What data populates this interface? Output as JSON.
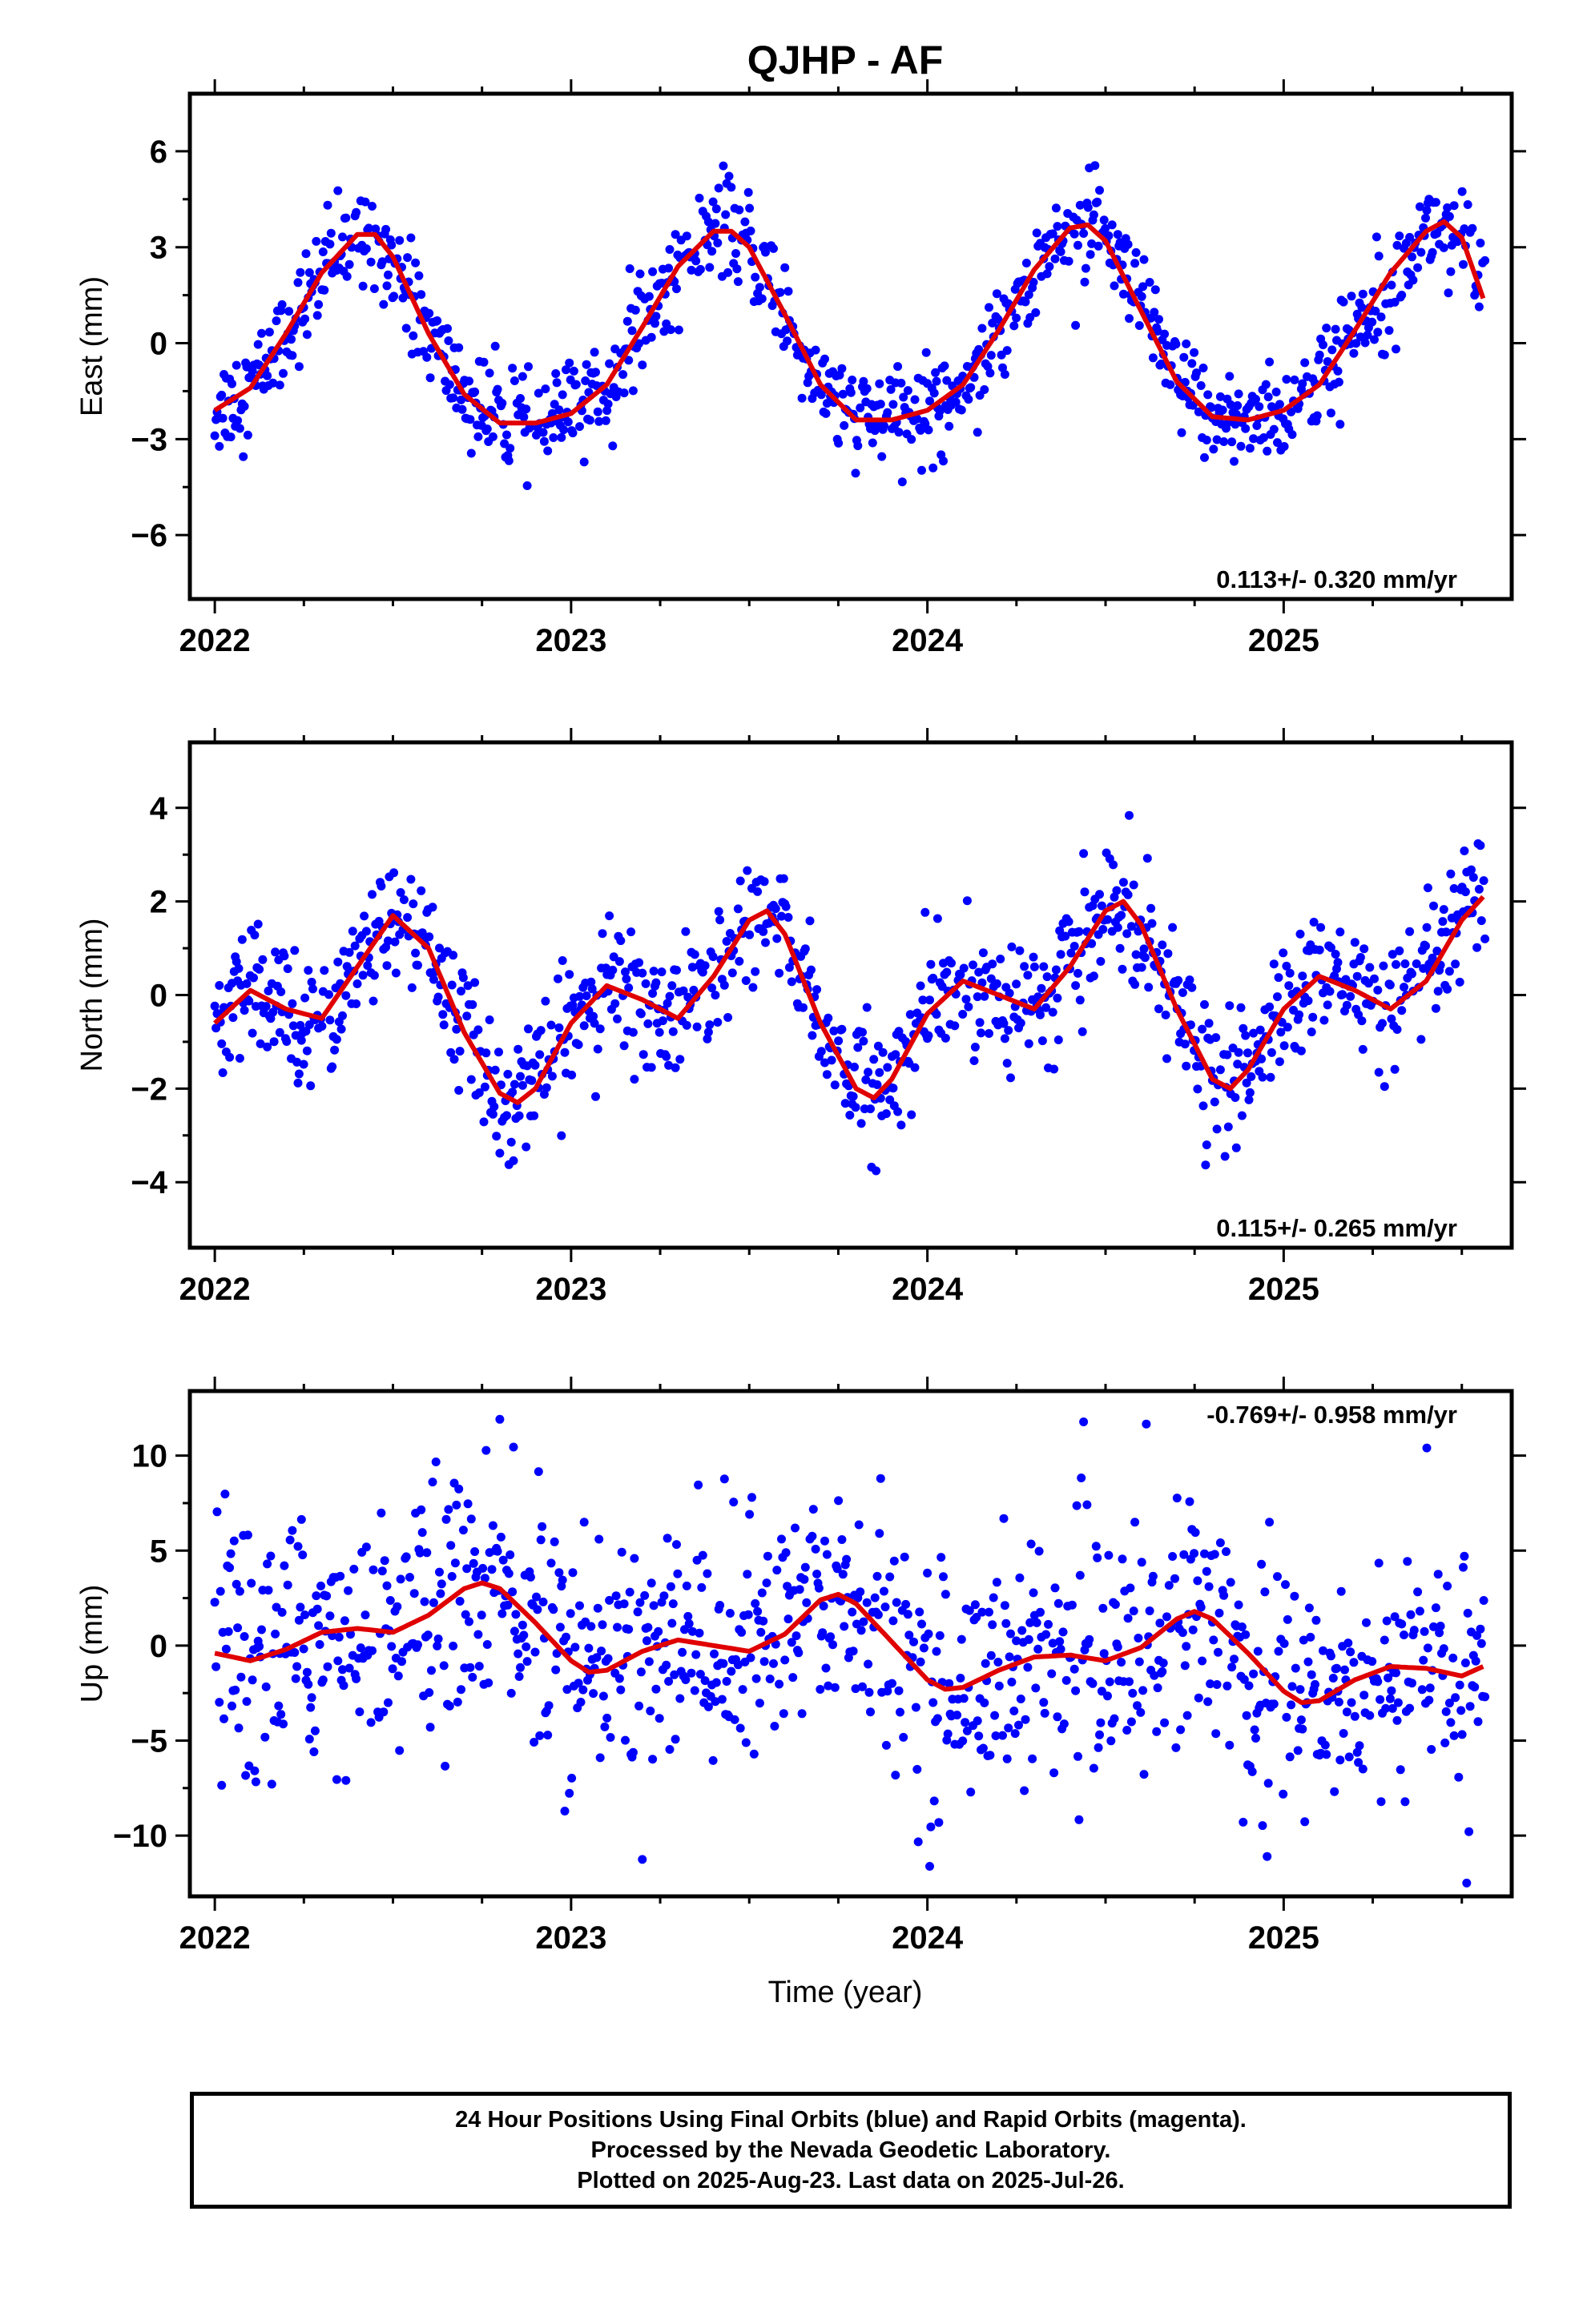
{
  "title": "QJHP - AF",
  "xlabel": "Time (year)",
  "colors": {
    "final_orbits": "#0000ff",
    "model": "#e00000",
    "rapid_orbits": "#ff00ff"
  },
  "caption": [
    "24 Hour Positions Using Final Orbits (blue) and Rapid Orbits (magenta).",
    "Processed by the Nevada Geodetic Laboratory.",
    "Plotted on 2025-Aug-23. Last data on 2025-Jul-26."
  ],
  "chart_data": [
    {
      "type": "scatter",
      "component": "east",
      "ylabel": "East (mm)",
      "xlim": [
        2021.93,
        2025.64
      ],
      "ylim": [
        -8.0,
        7.8
      ],
      "xticks": [
        2022,
        2023,
        2024,
        2025
      ],
      "xtick_labels": [
        "2022",
        "2023",
        "2024",
        "2025"
      ],
      "yticks": [
        -6,
        -3,
        0,
        3,
        6
      ],
      "ytick_labels": [
        "−6",
        "−3",
        "0",
        "3",
        "6"
      ],
      "rate_label": "0.113+/- 0.320 mm/yr",
      "rate_position": "bottom-right",
      "model": {
        "x": [
          2022.0,
          2022.1,
          2022.2,
          2022.3,
          2022.4,
          2022.45,
          2022.5,
          2022.6,
          2022.7,
          2022.8,
          2022.9,
          2023.0,
          2023.1,
          2023.2,
          2023.3,
          2023.4,
          2023.45,
          2023.5,
          2023.6,
          2023.7,
          2023.8,
          2023.9,
          2024.0,
          2024.1,
          2024.2,
          2024.3,
          2024.4,
          2024.45,
          2024.5,
          2024.6,
          2024.7,
          2024.8,
          2024.9,
          2025.0,
          2025.1,
          2025.2,
          2025.3,
          2025.4,
          2025.45,
          2025.5,
          2025.56
        ],
        "y": [
          -2.1,
          -1.4,
          0.3,
          2.2,
          3.4,
          3.4,
          2.7,
          0.3,
          -1.6,
          -2.5,
          -2.5,
          -2.2,
          -1.3,
          0.5,
          2.4,
          3.5,
          3.5,
          3.0,
          0.9,
          -1.3,
          -2.4,
          -2.4,
          -2.1,
          -1.3,
          0.4,
          2.3,
          3.6,
          3.7,
          3.2,
          1.0,
          -1.2,
          -2.3,
          -2.4,
          -2.1,
          -1.3,
          0.4,
          2.2,
          3.5,
          3.8,
          3.3,
          1.4
        ]
      },
      "seasonal": {
        "amplitude": 3.0,
        "phase_year": 2022.43,
        "scatter": 0.85,
        "rate": 0.113,
        "offset": 0.45
      }
    },
    {
      "type": "scatter",
      "component": "north",
      "ylabel": "North (mm)",
      "xlim": [
        2021.93,
        2025.64
      ],
      "ylim": [
        -5.4,
        5.4
      ],
      "xticks": [
        2022,
        2023,
        2024,
        2025
      ],
      "xtick_labels": [
        "2022",
        "2023",
        "2024",
        "2025"
      ],
      "yticks": [
        -4,
        -2,
        0,
        2,
        4
      ],
      "ytick_labels": [
        "−4",
        "−2",
        "0",
        "2",
        "4"
      ],
      "rate_label": "0.115+/- 0.265 mm/yr",
      "rate_position": "bottom-right",
      "model": {
        "x": [
          2022.0,
          2022.1,
          2022.2,
          2022.3,
          2022.4,
          2022.5,
          2022.6,
          2022.7,
          2022.8,
          2022.85,
          2022.9,
          2023.0,
          2023.1,
          2023.2,
          2023.3,
          2023.4,
          2023.5,
          2023.55,
          2023.6,
          2023.7,
          2023.8,
          2023.85,
          2023.9,
          2024.0,
          2024.1,
          2024.2,
          2024.3,
          2024.4,
          2024.5,
          2024.55,
          2024.6,
          2024.7,
          2024.8,
          2024.85,
          2024.9,
          2025.0,
          2025.1,
          2025.2,
          2025.3,
          2025.4,
          2025.5,
          2025.56
        ],
        "y": [
          -0.6,
          0.1,
          -0.3,
          -0.5,
          0.6,
          1.7,
          1.0,
          -0.8,
          -2.1,
          -2.3,
          -2.0,
          -0.6,
          0.2,
          -0.1,
          -0.5,
          0.4,
          1.6,
          1.8,
          1.3,
          -0.6,
          -2.0,
          -2.2,
          -1.8,
          -0.4,
          0.3,
          0.0,
          -0.3,
          0.6,
          1.8,
          2.0,
          1.5,
          -0.3,
          -1.8,
          -2.0,
          -1.6,
          -0.3,
          0.4,
          0.1,
          -0.3,
          0.3,
          1.6,
          2.1
        ]
      },
      "seasonal": {
        "amplitude": 1.5,
        "phase_year": 2022.52,
        "scatter": 0.75,
        "rate": 0.115,
        "offset": -0.2
      }
    },
    {
      "type": "scatter",
      "component": "up",
      "ylabel": "Up (mm)",
      "xlim": [
        2021.93,
        2025.64
      ],
      "ylim": [
        -13.2,
        13.4
      ],
      "xticks": [
        2022,
        2023,
        2024,
        2025
      ],
      "xtick_labels": [
        "2022",
        "2023",
        "2024",
        "2025"
      ],
      "yticks": [
        -10,
        -5,
        0,
        5,
        10
      ],
      "ytick_labels": [
        "−10",
        "−5",
        "0",
        "5",
        "10"
      ],
      "rate_label": "-0.769+/- 0.958 mm/yr",
      "rate_position": "top-right",
      "model": {
        "x": [
          2022.0,
          2022.1,
          2022.2,
          2022.3,
          2022.4,
          2022.5,
          2022.6,
          2022.7,
          2022.75,
          2022.8,
          2022.9,
          2023.0,
          2023.05,
          2023.1,
          2023.2,
          2023.3,
          2023.4,
          2023.5,
          2023.6,
          2023.7,
          2023.75,
          2023.8,
          2023.9,
          2024.0,
          2024.05,
          2024.1,
          2024.2,
          2024.3,
          2024.4,
          2024.5,
          2024.6,
          2024.7,
          2024.75,
          2024.8,
          2024.9,
          2025.0,
          2025.05,
          2025.1,
          2025.2,
          2025.3,
          2025.4,
          2025.5,
          2025.56
        ],
        "y": [
          -0.4,
          -0.8,
          -0.2,
          0.7,
          0.9,
          0.7,
          1.6,
          3.0,
          3.3,
          3.0,
          1.2,
          -0.8,
          -1.4,
          -1.3,
          -0.3,
          0.3,
          0.0,
          -0.3,
          0.6,
          2.4,
          2.7,
          2.2,
          0.2,
          -1.8,
          -2.3,
          -2.2,
          -1.3,
          -0.6,
          -0.5,
          -0.8,
          -0.1,
          1.4,
          1.8,
          1.4,
          -0.4,
          -2.4,
          -3.0,
          -2.9,
          -1.8,
          -1.1,
          -1.2,
          -1.6,
          -1.1
        ]
      },
      "seasonal": {
        "amplitude": 1.6,
        "phase_year": 2022.72,
        "scatter": 3.6,
        "rate": -0.769,
        "offset": 0.6
      }
    }
  ]
}
